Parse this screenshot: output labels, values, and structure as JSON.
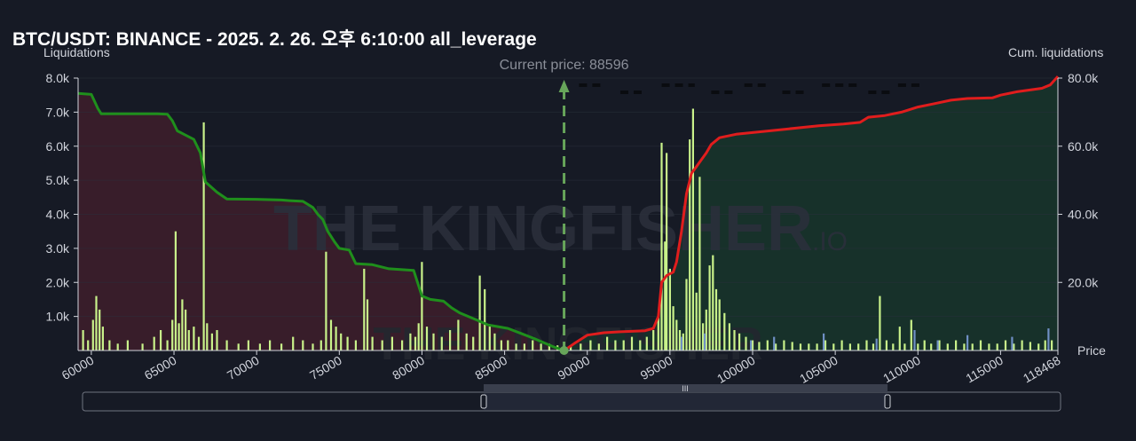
{
  "title": "BTC/USDT: BINANCE - 2025. 2. 26. 오후 6:10:00 all_leverage",
  "watermark": {
    "brand": "THE KINGFISHER",
    "suffix": ".IO"
  },
  "colors": {
    "background": "#161a25",
    "short_cum_line": "#1f8f1c",
    "short_fill": "#3a1e2a",
    "long_cum_line": "#e01d1d",
    "long_fill": "#17332a",
    "bar_green": "#c9f28a",
    "bar_blue": "#6f8fc4",
    "current_price": "#67a55a"
  },
  "chart_data": {
    "type": "bar+line",
    "title": "BTC/USDT: BINANCE - 2025. 2. 26. 오후 6:10:00 all_leverage",
    "left_axis_title": "Liquidations",
    "right_axis_title": "Cum. liquidations",
    "x_axis_title": "Price",
    "current_price_label": "Current price: 88596",
    "current_price": 88596,
    "xlim": [
      59200,
      118468
    ],
    "ylim_left": [
      0,
      8000
    ],
    "ylim_right": [
      0,
      80000
    ],
    "x_ticks": [
      "60000",
      "65000",
      "70000",
      "75000",
      "80000",
      "85000",
      "90000",
      "95000",
      "100000",
      "105000",
      "110000",
      "115000",
      "118468"
    ],
    "x_tick_values": [
      60000,
      65000,
      70000,
      75000,
      80000,
      85000,
      90000,
      95000,
      100000,
      105000,
      110000,
      115000,
      118468
    ],
    "y_left_ticks": [
      "1.0k",
      "2.0k",
      "3.0k",
      "4.0k",
      "5.0k",
      "6.0k",
      "7.0k",
      "8.0k"
    ],
    "y_left_values": [
      1000,
      2000,
      3000,
      4000,
      5000,
      6000,
      7000,
      8000
    ],
    "y_right_ticks": [
      "20.0k",
      "40.0k",
      "60.0k",
      "80.0k"
    ],
    "y_right_values": [
      20000,
      40000,
      60000,
      80000
    ],
    "bars": [
      [
        59500,
        600
      ],
      [
        59800,
        300
      ],
      [
        60100,
        900
      ],
      [
        60300,
        1600
      ],
      [
        60500,
        1200
      ],
      [
        60700,
        700
      ],
      [
        61100,
        300
      ],
      [
        61600,
        200
      ],
      [
        62200,
        300
      ],
      [
        63100,
        200
      ],
      [
        63800,
        400
      ],
      [
        64200,
        600
      ],
      [
        64600,
        300
      ],
      [
        64900,
        900
      ],
      [
        65100,
        3500
      ],
      [
        65300,
        800
      ],
      [
        65500,
        1500
      ],
      [
        65700,
        1200
      ],
      [
        65900,
        600
      ],
      [
        66200,
        700
      ],
      [
        66500,
        400
      ],
      [
        66800,
        6700
      ],
      [
        67000,
        800
      ],
      [
        67300,
        500
      ],
      [
        67600,
        600
      ],
      [
        68200,
        300
      ],
      [
        68900,
        200
      ],
      [
        69500,
        300
      ],
      [
        70200,
        200
      ],
      [
        70800,
        300
      ],
      [
        71500,
        200
      ],
      [
        72200,
        400
      ],
      [
        72800,
        300
      ],
      [
        73400,
        200
      ],
      [
        73900,
        300
      ],
      [
        74200,
        2900
      ],
      [
        74500,
        900
      ],
      [
        74800,
        700
      ],
      [
        75100,
        500
      ],
      [
        75500,
        400
      ],
      [
        76000,
        300
      ],
      [
        76500,
        2400
      ],
      [
        76700,
        1500
      ],
      [
        77000,
        400
      ],
      [
        77600,
        300
      ],
      [
        78200,
        400
      ],
      [
        78800,
        300
      ],
      [
        79300,
        500
      ],
      [
        79600,
        400
      ],
      [
        79800,
        800
      ],
      [
        80000,
        2600
      ],
      [
        80300,
        700
      ],
      [
        80700,
        500
      ],
      [
        81200,
        400
      ],
      [
        81700,
        600
      ],
      [
        82200,
        900
      ],
      [
        82700,
        500
      ],
      [
        83100,
        400
      ],
      [
        83500,
        2200
      ],
      [
        83800,
        1800
      ],
      [
        84100,
        700
      ],
      [
        84400,
        500
      ],
      [
        84800,
        300
      ],
      [
        85200,
        300
      ],
      [
        85700,
        200
      ],
      [
        86200,
        200
      ],
      [
        86700,
        300
      ],
      [
        87200,
        200
      ],
      [
        87700,
        200
      ],
      [
        88200,
        150
      ],
      [
        89000,
        150
      ],
      [
        89600,
        200
      ],
      [
        90200,
        300
      ],
      [
        90700,
        200
      ],
      [
        91200,
        400
      ],
      [
        91700,
        300
      ],
      [
        92200,
        300
      ],
      [
        92700,
        400
      ],
      [
        93200,
        300
      ],
      [
        93600,
        400
      ],
      [
        94000,
        600
      ],
      [
        94300,
        1000
      ],
      [
        94500,
        6100
      ],
      [
        94700,
        3200
      ],
      [
        94800,
        5800
      ],
      [
        95000,
        2400
      ],
      [
        95200,
        1300
      ],
      [
        95400,
        900
      ],
      [
        95600,
        600
      ],
      [
        95800,
        500
      ],
      [
        96000,
        2100
      ],
      [
        96200,
        6200
      ],
      [
        96400,
        7100
      ],
      [
        96600,
        1700
      ],
      [
        96800,
        5100
      ],
      [
        97000,
        800
      ],
      [
        97200,
        1200
      ],
      [
        97400,
        2500
      ],
      [
        97600,
        2800
      ],
      [
        97800,
        1800
      ],
      [
        98000,
        1500
      ],
      [
        98300,
        1100
      ],
      [
        98600,
        800
      ],
      [
        98900,
        600
      ],
      [
        99200,
        500
      ],
      [
        99600,
        400
      ],
      [
        100000,
        300
      ],
      [
        100400,
        250
      ],
      [
        100900,
        300
      ],
      [
        101400,
        200
      ],
      [
        101900,
        300
      ],
      [
        102400,
        250
      ],
      [
        102900,
        200
      ],
      [
        103400,
        200
      ],
      [
        103900,
        200
      ],
      [
        104400,
        300
      ],
      [
        104900,
        200
      ],
      [
        105400,
        300
      ],
      [
        105900,
        200
      ],
      [
        106400,
        200
      ],
      [
        106900,
        300
      ],
      [
        107300,
        200
      ],
      [
        107700,
        1600
      ],
      [
        108100,
        300
      ],
      [
        108500,
        200
      ],
      [
        108900,
        700
      ],
      [
        109200,
        200
      ],
      [
        109600,
        900
      ],
      [
        110000,
        200
      ],
      [
        110400,
        300
      ],
      [
        110800,
        200
      ],
      [
        111300,
        300
      ],
      [
        111800,
        200
      ],
      [
        112300,
        300
      ],
      [
        112800,
        200
      ],
      [
        113300,
        200
      ],
      [
        113800,
        300
      ],
      [
        114300,
        200
      ],
      [
        114800,
        200
      ],
      [
        115300,
        300
      ],
      [
        115800,
        200
      ],
      [
        116300,
        300
      ],
      [
        116800,
        250
      ],
      [
        117300,
        200
      ],
      [
        117700,
        300
      ],
      [
        118100,
        300
      ]
    ],
    "bars_blue": [
      [
        95700,
        400
      ],
      [
        97100,
        500
      ],
      [
        99900,
        300
      ],
      [
        101300,
        400
      ],
      [
        104300,
        500
      ],
      [
        107500,
        350
      ],
      [
        109800,
        600
      ],
      [
        111200,
        300
      ],
      [
        113000,
        450
      ],
      [
        115700,
        400
      ],
      [
        117900,
        650
      ]
    ],
    "cum_short": [
      [
        59200,
        75500
      ],
      [
        60000,
        75200
      ],
      [
        60400,
        71000
      ],
      [
        60600,
        69500
      ],
      [
        63000,
        69500
      ],
      [
        64000,
        69500
      ],
      [
        64600,
        69400
      ],
      [
        64900,
        67500
      ],
      [
        65200,
        64500
      ],
      [
        65600,
        63500
      ],
      [
        66200,
        62000
      ],
      [
        66600,
        58000
      ],
      [
        66900,
        49500
      ],
      [
        67600,
        46500
      ],
      [
        68200,
        44500
      ],
      [
        70000,
        44400
      ],
      [
        71500,
        44200
      ],
      [
        72000,
        44000
      ],
      [
        72800,
        43800
      ],
      [
        73400,
        42000
      ],
      [
        73700,
        40000
      ],
      [
        74000,
        38500
      ],
      [
        74300,
        35000
      ],
      [
        74700,
        32000
      ],
      [
        75000,
        30000
      ],
      [
        75600,
        29500
      ],
      [
        76000,
        25500
      ],
      [
        77000,
        25200
      ],
      [
        78000,
        24000
      ],
      [
        79500,
        23500
      ],
      [
        79800,
        19000
      ],
      [
        80000,
        16000
      ],
      [
        80500,
        15000
      ],
      [
        81300,
        14500
      ],
      [
        81800,
        12500
      ],
      [
        82300,
        11000
      ],
      [
        83300,
        9000
      ],
      [
        84000,
        7500
      ],
      [
        84600,
        7000
      ],
      [
        85200,
        6500
      ],
      [
        86000,
        5000
      ],
      [
        86800,
        3500
      ],
      [
        87500,
        2000
      ],
      [
        88000,
        1000
      ],
      [
        88596,
        0
      ]
    ],
    "cum_long": [
      [
        88596,
        0
      ],
      [
        89200,
        2000
      ],
      [
        90000,
        4500
      ],
      [
        91000,
        5200
      ],
      [
        92000,
        5500
      ],
      [
        93500,
        5800
      ],
      [
        94000,
        6500
      ],
      [
        94300,
        10000
      ],
      [
        94500,
        20000
      ],
      [
        94800,
        22000
      ],
      [
        95200,
        23000
      ],
      [
        95400,
        26000
      ],
      [
        95700,
        35000
      ],
      [
        96000,
        46000
      ],
      [
        96300,
        52000
      ],
      [
        96600,
        54000
      ],
      [
        96900,
        56000
      ],
      [
        97200,
        58000
      ],
      [
        97500,
        60500
      ],
      [
        98000,
        62500
      ],
      [
        99000,
        63500
      ],
      [
        100000,
        64000
      ],
      [
        101000,
        64500
      ],
      [
        102000,
        65000
      ],
      [
        103000,
        65500
      ],
      [
        104000,
        66000
      ],
      [
        105500,
        66500
      ],
      [
        106500,
        67000
      ],
      [
        107000,
        68500
      ],
      [
        108000,
        69000
      ],
      [
        109000,
        70000
      ],
      [
        110000,
        71500
      ],
      [
        111000,
        72500
      ],
      [
        112000,
        73500
      ],
      [
        113000,
        74000
      ],
      [
        114500,
        74200
      ],
      [
        115000,
        75000
      ],
      [
        116000,
        76000
      ],
      [
        117500,
        77000
      ],
      [
        118000,
        78000
      ],
      [
        118468,
        80500
      ]
    ]
  }
}
